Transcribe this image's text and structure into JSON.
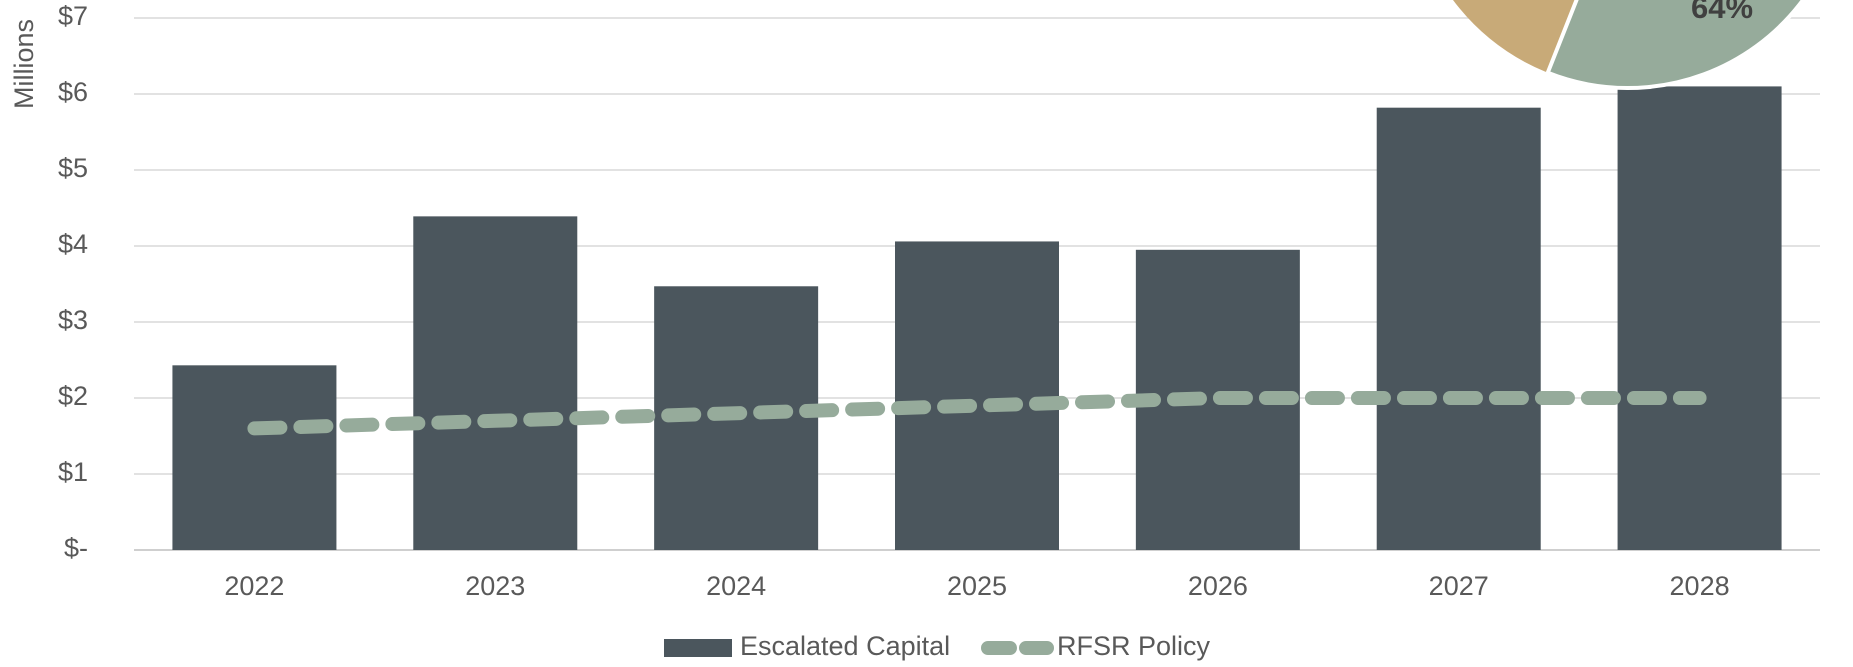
{
  "chart_data": [
    {
      "type": "bar",
      "y_label": "Millions",
      "categories": [
        "2022",
        "2023",
        "2024",
        "2025",
        "2026",
        "2027",
        "2028"
      ],
      "series": [
        {
          "name": "Escalated Capital",
          "color": "#4b565d",
          "type": "bar",
          "values": [
            2.43,
            4.39,
            3.47,
            4.06,
            3.95,
            5.82,
            6.1
          ]
        },
        {
          "name": "RFSR Policy",
          "color": "#96ab9b",
          "type": "line",
          "values": [
            1.6,
            1.7,
            1.8,
            1.9,
            2.0,
            2.0,
            2.0
          ]
        }
      ],
      "ylim": [
        0,
        7
      ],
      "yticks": [
        {
          "value": 0,
          "label": "$-"
        },
        {
          "value": 1,
          "label": "$1"
        },
        {
          "value": 2,
          "label": "$2"
        },
        {
          "value": 3,
          "label": "$3"
        },
        {
          "value": 4,
          "label": "$4"
        },
        {
          "value": 5,
          "label": "$5"
        },
        {
          "value": 6,
          "label": "$6"
        },
        {
          "value": 7,
          "label": "$7"
        }
      ],
      "grid": true,
      "legend": "bottom"
    },
    {
      "type": "pie",
      "values": [
        64
      ],
      "value_labels": [
        "64%"
      ],
      "color": "#96ab9b"
    }
  ]
}
